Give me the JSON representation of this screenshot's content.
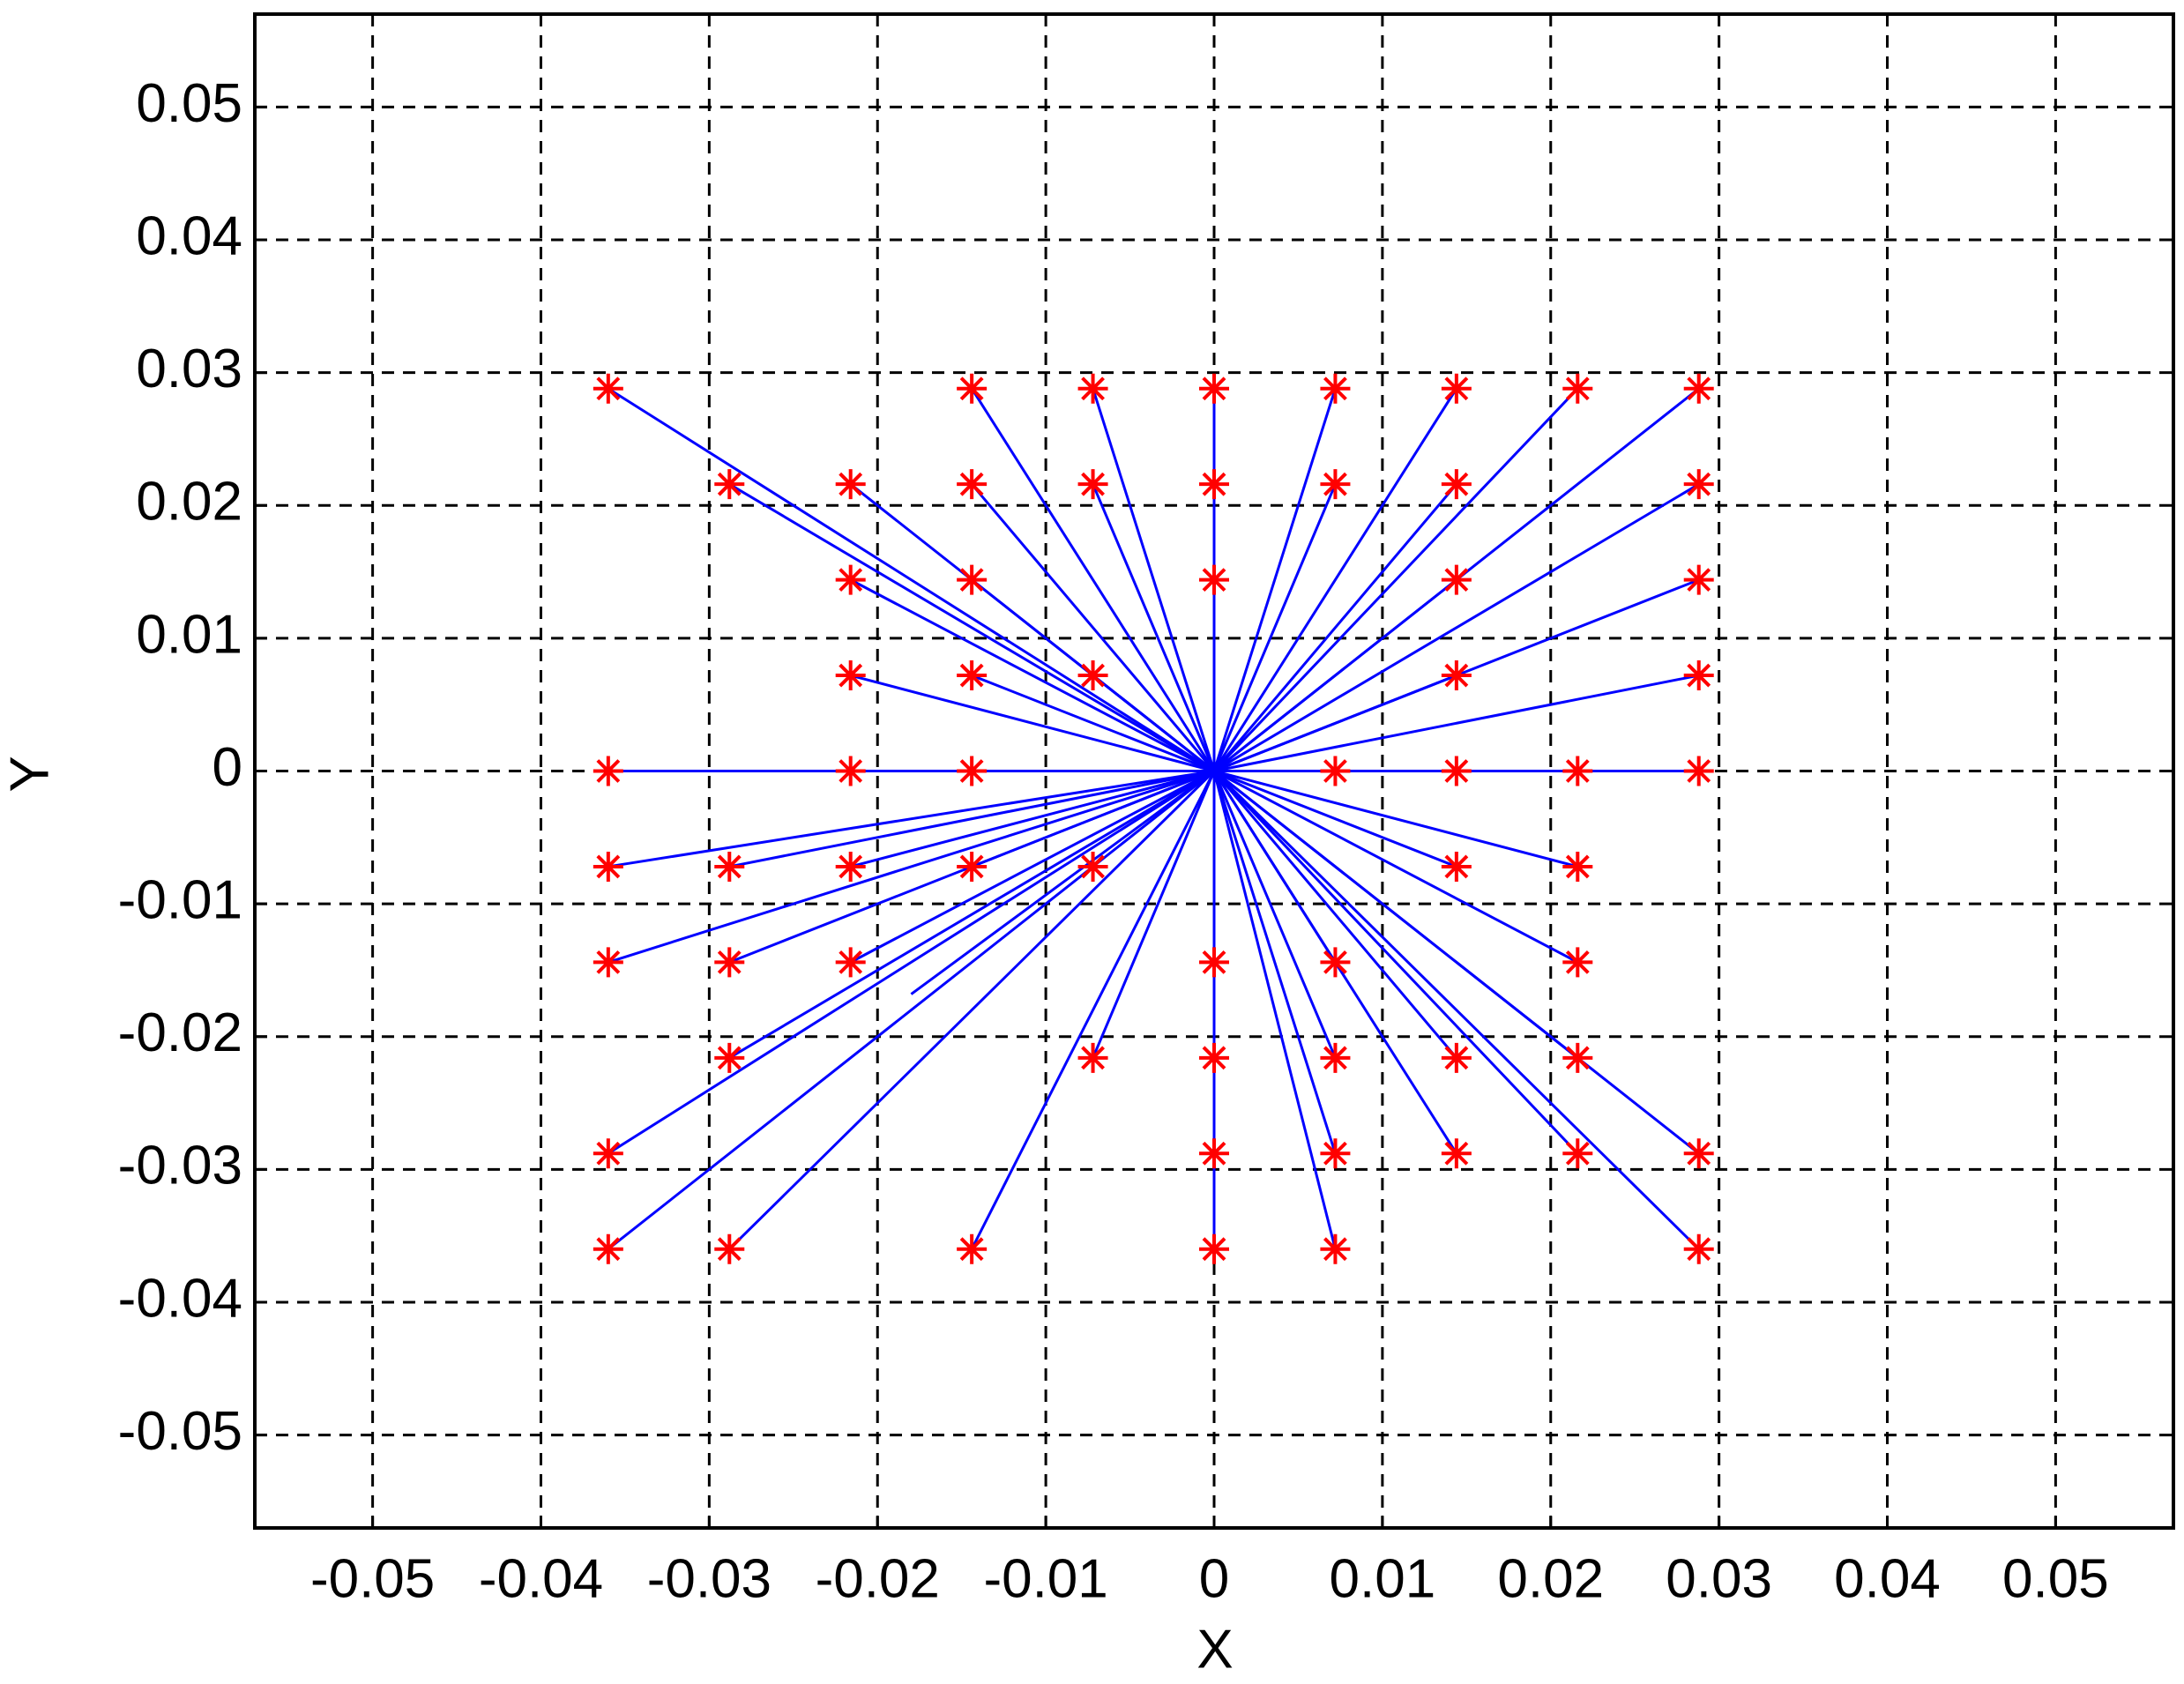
{
  "chart_data": {
    "type": "scatter",
    "x_label": "X",
    "y_label": "Y",
    "xlim": [
      -0.057,
      0.057
    ],
    "ylim": [
      -0.057,
      0.057
    ],
    "xticks": [
      -0.05,
      -0.04,
      -0.03,
      -0.02,
      -0.01,
      0,
      0.01,
      0.02,
      0.03,
      0.04,
      0.05
    ],
    "yticks": [
      -0.05,
      -0.04,
      -0.03,
      -0.02,
      -0.01,
      0,
      0.01,
      0.02,
      0.03,
      0.04,
      0.05
    ],
    "grid": true,
    "markers": {
      "color": "#ff0000",
      "x": [
        -0.036,
        -0.0144,
        -0.0072,
        0,
        0.0072,
        0.0144,
        0.0216,
        0.0288,
        -0.0288,
        -0.0216,
        -0.0144,
        -0.0072,
        0,
        0.0072,
        0.0144,
        0.0288,
        -0.0216,
        -0.0144,
        0,
        0.0144,
        0.0288,
        -0.0216,
        -0.0144,
        -0.0072,
        0.0144,
        0.0288,
        -0.036,
        -0.0216,
        -0.0144,
        0.0072,
        0.0144,
        0.0216,
        0.0288,
        -0.036,
        -0.0288,
        -0.0216,
        -0.0144,
        -0.0072,
        0.0144,
        0.0216,
        -0.036,
        -0.0288,
        -0.0216,
        0,
        0.0072,
        0.0216,
        -0.0288,
        -0.0072,
        0,
        0.0072,
        0.0144,
        0.0216,
        -0.036,
        0,
        0.0072,
        0.0144,
        0.0216,
        0.0288,
        -0.036,
        -0.0288,
        -0.0144,
        0,
        0.0072,
        0.0288
      ],
      "y": [
        0.0288,
        0.0288,
        0.0288,
        0.0288,
        0.0288,
        0.0288,
        0.0288,
        0.0288,
        0.0216,
        0.0216,
        0.0216,
        0.0216,
        0.0216,
        0.0216,
        0.0216,
        0.0216,
        0.0144,
        0.0144,
        0.0144,
        0.0144,
        0.0144,
        0.0072,
        0.0072,
        0.0072,
        0.0072,
        0.0072,
        0,
        0,
        0,
        0,
        0,
        0,
        0,
        -0.0072,
        -0.0072,
        -0.0072,
        -0.0072,
        -0.0072,
        -0.0072,
        -0.0072,
        -0.0144,
        -0.0144,
        -0.0144,
        -0.0144,
        -0.0144,
        -0.0144,
        -0.0216,
        -0.0216,
        -0.0216,
        -0.0216,
        -0.0216,
        -0.0216,
        -0.0288,
        -0.0288,
        -0.0288,
        -0.0288,
        -0.0288,
        -0.0288,
        -0.036,
        -0.036,
        -0.036,
        -0.036,
        -0.036,
        -0.036
      ]
    },
    "lines": {
      "color": "#0000ff",
      "x0": 0,
      "y0": 0,
      "x": [
        -0.036,
        -0.0288,
        -0.0216,
        -0.0216,
        -0.0216,
        -0.0144,
        -0.0144,
        -0.0144,
        -0.0144,
        -0.0072,
        -0.0072,
        -0.0072,
        0,
        0.0072,
        0.0072,
        0.0144,
        0.0144,
        0.0144,
        0.0144,
        0.0216,
        0.0288,
        0.0288,
        0.0288,
        0.0288,
        0.0288,
        -0.036,
        -0.036,
        -0.0288,
        -0.0216,
        -0.0144,
        -0.036,
        -0.0288,
        -0.0216,
        -0.0288,
        -0.036,
        -0.036,
        -0.0288,
        -0.018,
        -0.0144,
        -0.0072,
        0,
        0.0072,
        0.0072,
        0.0072,
        0.0072,
        0.0144,
        0.0144,
        0.0216,
        0.0216,
        0.0216,
        0.0216,
        0.0144,
        0.0288,
        0.0288
      ],
      "y": [
        0.0288,
        0.0216,
        0.0216,
        0.0144,
        0.0072,
        0.0288,
        0.0216,
        0.0144,
        0.0072,
        0.0288,
        0.0216,
        0.0072,
        0.0288,
        0.0288,
        0.0216,
        0.0288,
        0.0216,
        0.0144,
        0.0072,
        0.0288,
        0.0288,
        0.0216,
        0.0144,
        0.0072,
        0,
        0,
        -0.0072,
        -0.0072,
        -0.0072,
        -0.0072,
        -0.0144,
        -0.0144,
        -0.0144,
        -0.0216,
        -0.0288,
        -0.036,
        -0.036,
        -0.0168,
        -0.036,
        -0.0216,
        -0.036,
        -0.036,
        -0.0288,
        -0.0216,
        -0.0144,
        -0.0288,
        -0.0216,
        -0.0288,
        -0.0216,
        -0.0144,
        -0.0072,
        -0.0072,
        -0.0288,
        -0.036
      ]
    }
  }
}
